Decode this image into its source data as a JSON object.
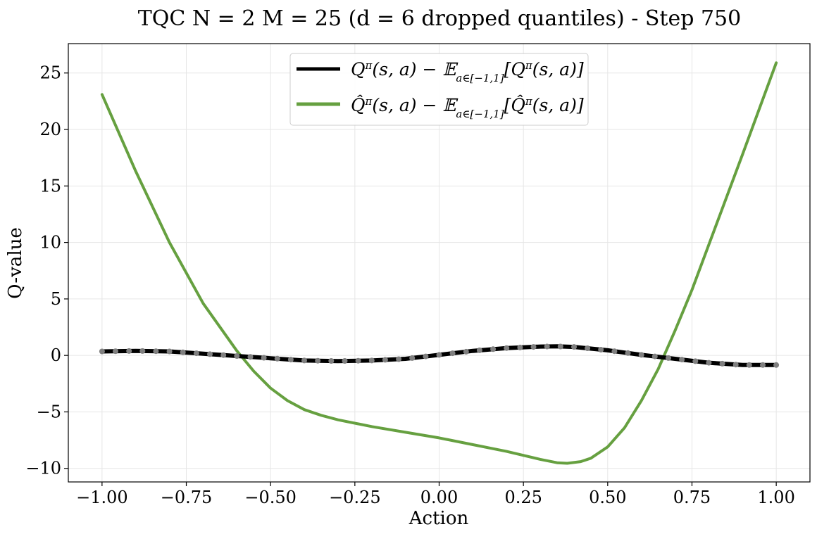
{
  "chart_data": {
    "type": "line",
    "title": "TQC N = 2 M = 25 (d = 6 dropped quantiles) - Step 750",
    "xlabel": "Action",
    "ylabel": "Q-value",
    "xlim": [
      -1.1,
      1.1
    ],
    "ylim": [
      -11.2,
      27.6
    ],
    "xticks": [
      -1.0,
      -0.75,
      -0.5,
      -0.25,
      0.0,
      0.25,
      0.5,
      0.75,
      1.0
    ],
    "xtick_labels": [
      "−1.00",
      "−0.75",
      "−0.50",
      "−0.25",
      "0.00",
      "0.25",
      "0.50",
      "0.75",
      "1.00"
    ],
    "yticks": [
      -10,
      -5,
      0,
      5,
      10,
      15,
      20,
      25
    ],
    "ytick_labels": [
      "−10",
      "−5",
      "0",
      "5",
      "10",
      "15",
      "20",
      "25"
    ],
    "grid": true,
    "legend_position": "upper-center",
    "series": [
      {
        "name": "Qπ(s,a) − E_{a∈[−1,1]}[Qπ(s,a)]",
        "color": "#000000",
        "x": [
          -1.0,
          -0.9,
          -0.8,
          -0.7,
          -0.6,
          -0.5,
          -0.4,
          -0.3,
          -0.2,
          -0.1,
          0.0,
          0.1,
          0.2,
          0.3,
          0.35,
          0.4,
          0.5,
          0.6,
          0.7,
          0.8,
          0.9,
          1.0
        ],
        "y": [
          0.35,
          0.4,
          0.35,
          0.15,
          -0.05,
          -0.25,
          -0.45,
          -0.5,
          -0.45,
          -0.3,
          0.05,
          0.4,
          0.65,
          0.78,
          0.8,
          0.75,
          0.45,
          0.05,
          -0.3,
          -0.65,
          -0.85,
          -0.85
        ]
      },
      {
        "name": "Q̂π(s,a) − E_{a∈[−1,1]}[Q̂π(s,a)]",
        "color": "#66a040",
        "x": [
          -1.0,
          -0.9,
          -0.8,
          -0.7,
          -0.6,
          -0.55,
          -0.5,
          -0.45,
          -0.4,
          -0.35,
          -0.3,
          -0.2,
          -0.1,
          0.0,
          0.1,
          0.2,
          0.3,
          0.35,
          0.38,
          0.42,
          0.45,
          0.5,
          0.55,
          0.6,
          0.65,
          0.7,
          0.75,
          0.8,
          0.9,
          1.0
        ],
        "y": [
          23.1,
          16.3,
          10.0,
          4.6,
          0.4,
          -1.4,
          -2.9,
          -4.0,
          -4.8,
          -5.3,
          -5.7,
          -6.3,
          -6.8,
          -7.3,
          -7.9,
          -8.5,
          -9.2,
          -9.5,
          -9.55,
          -9.4,
          -9.1,
          -8.1,
          -6.4,
          -4.0,
          -1.2,
          2.2,
          5.8,
          9.8,
          17.8,
          25.9
        ]
      }
    ],
    "markers": {
      "color": "#808080",
      "x": [
        -1.0,
        -0.96,
        -0.92,
        -0.88,
        -0.84,
        -0.8,
        -0.76,
        -0.72,
        -0.68,
        -0.64,
        -0.6,
        -0.56,
        -0.52,
        -0.48,
        -0.44,
        -0.4,
        -0.36,
        -0.32,
        -0.28,
        -0.24,
        -0.2,
        -0.16,
        -0.12,
        -0.08,
        -0.04,
        0.0,
        0.04,
        0.08,
        0.12,
        0.16,
        0.2,
        0.24,
        0.28,
        0.32,
        0.36,
        0.4,
        0.44,
        0.48,
        0.52,
        0.56,
        0.6,
        0.64,
        0.68,
        0.72,
        0.76,
        0.8,
        0.84,
        0.88,
        0.92,
        0.96,
        1.0
      ]
    }
  }
}
